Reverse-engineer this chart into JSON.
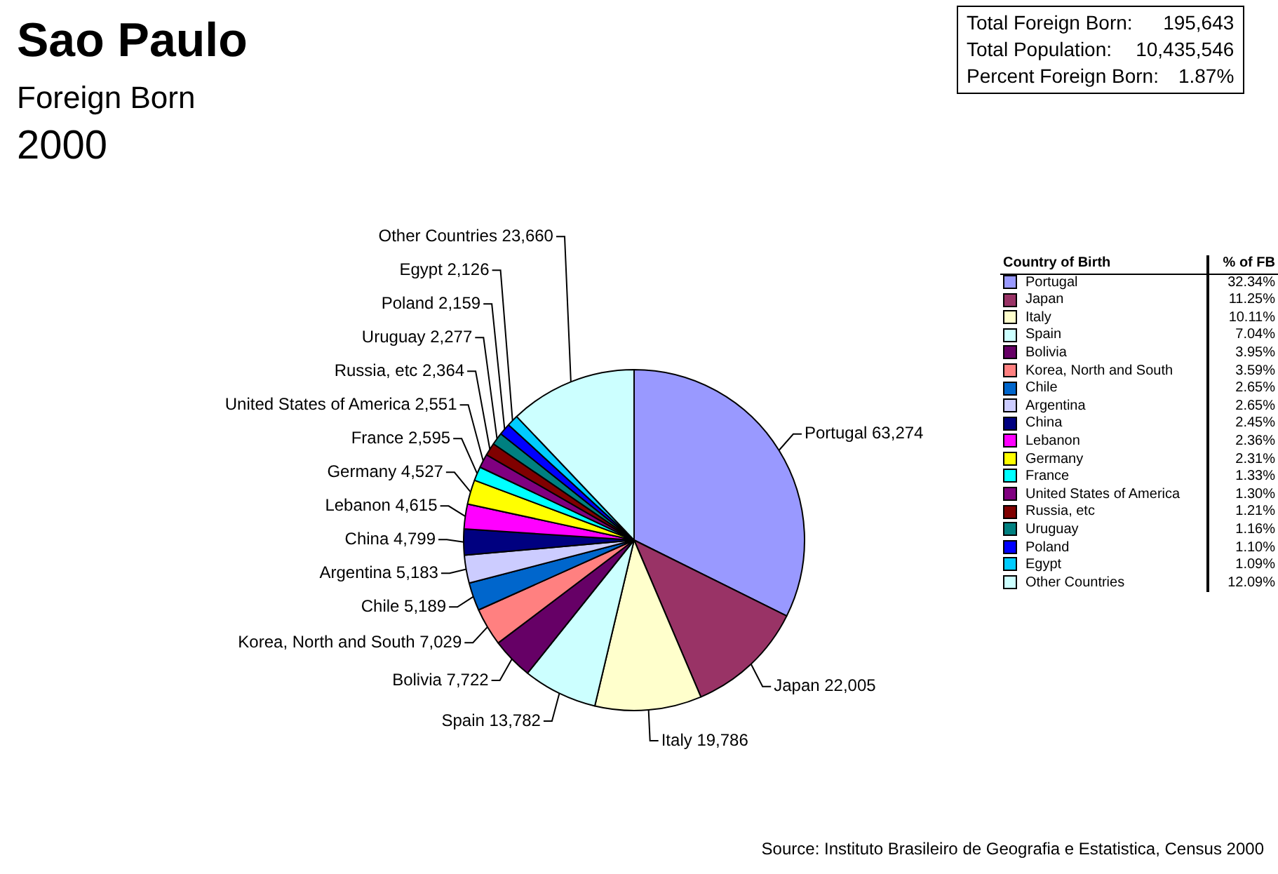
{
  "chart_data": {
    "type": "pie",
    "title": "Sao Paulo",
    "subtitle": "Foreign Born",
    "legend_title": "Country of Birth",
    "annotations": [
      "2000",
      "Total Foreign Born: 195,643",
      "Total Population: 10,435,546",
      "Percent Foreign Born: 1.87%",
      "% of FB",
      "Source: Instituto Brasileiro de Geografia e Estatistica, Census 2000",
      "32.34%",
      "11.25%",
      "10.11%",
      "7.04%",
      "3.95%",
      "3.59%",
      "2.65%",
      "2.65%",
      "2.45%",
      "2.36%",
      "2.31%",
      "1.33%",
      "1.30%",
      "1.21%",
      "1.16%",
      "1.10%",
      "1.09%",
      "12.09%"
    ],
    "categories": [
      "Portugal",
      "Japan",
      "Italy",
      "Spain",
      "Bolivia",
      "Korea, North and South",
      "Chile",
      "Argentina",
      "China",
      "Lebanon",
      "Germany",
      "France",
      "United States of America",
      "Russia, etc",
      "Uruguay",
      "Poland",
      "Egypt",
      "Other Countries"
    ],
    "values": [
      63274,
      22005,
      19786,
      13782,
      7722,
      7029,
      5189,
      5183,
      4799,
      4615,
      4527,
      2595,
      2551,
      2364,
      2277,
      2159,
      2126,
      23660
    ],
    "colors": [
      "#9999ff",
      "#993366",
      "#ffffcc",
      "#ccffff",
      "#660066",
      "#ff8080",
      "#0066cc",
      "#ccccff",
      "#000080",
      "#ff00ff",
      "#ffff00",
      "#00ffff",
      "#800080",
      "#800000",
      "#008080",
      "#0000ff",
      "#00ccff",
      "#ccffff"
    ],
    "value_labels": [
      "63,274",
      "22,005",
      "19,786",
      "13,782",
      "7,722",
      "7,029",
      "5,189",
      "5,183",
      "4,799",
      "4,615",
      "4,527",
      "2,595",
      "2,551",
      "2,364",
      "2,277",
      "2,159",
      "2,126",
      "23,660"
    ],
    "legend": "right"
  }
}
